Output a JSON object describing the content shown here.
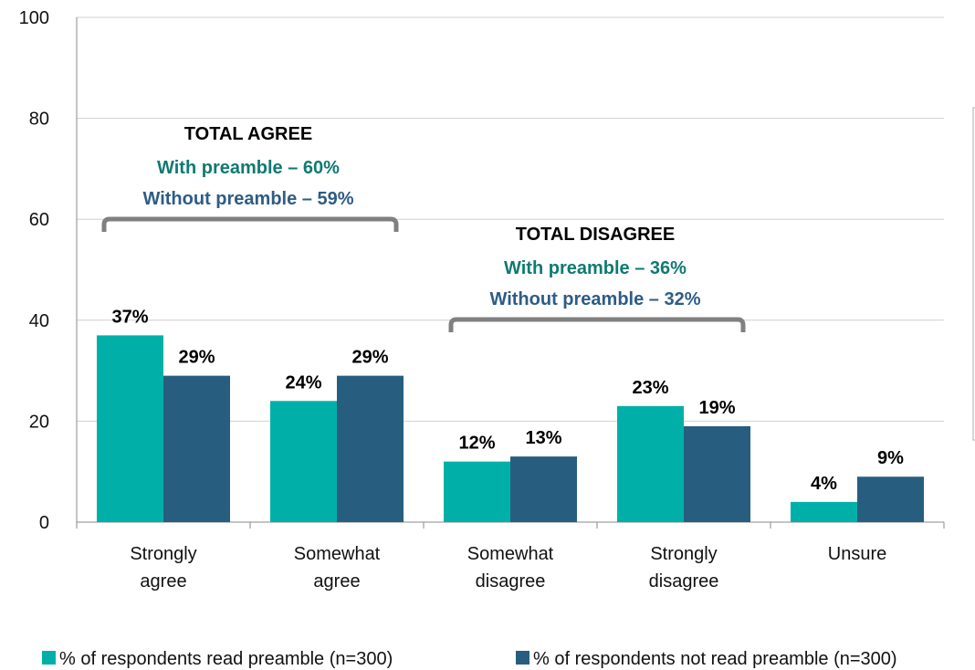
{
  "chart_data": {
    "type": "bar",
    "categories": [
      [
        "Strongly",
        "agree"
      ],
      [
        "Somewhat",
        "agree"
      ],
      [
        "Somewhat",
        "disagree"
      ],
      [
        "Strongly",
        "disagree"
      ],
      [
        "Unsure"
      ]
    ],
    "series": [
      {
        "name": "% of respondents read preamble (n=300)",
        "color": "#00B0A8",
        "values": [
          37,
          24,
          12,
          23,
          4
        ],
        "labels": [
          "37%",
          "24%",
          "12%",
          "23%",
          "4%"
        ]
      },
      {
        "name": "% of respondents not read preamble (n=300)",
        "color": "#275E80",
        "values": [
          29,
          29,
          13,
          19,
          9
        ],
        "labels": [
          "29%",
          "29%",
          "13%",
          "19%",
          "9%"
        ]
      }
    ],
    "ylim": [
      0,
      100
    ],
    "yticks": [
      0,
      20,
      40,
      60,
      80,
      100
    ],
    "grid": true,
    "legend_position": "bottom",
    "annotations": [
      {
        "title": "TOTAL AGREE",
        "with_text": "With preamble – 60%",
        "without_text": "Without preamble – 59%",
        "spans": [
          0,
          1
        ]
      },
      {
        "title": "TOTAL DISAGREE",
        "with_text": "With preamble – 36%",
        "without_text": "Without preamble – 32%",
        "spans": [
          2,
          3
        ]
      }
    ],
    "colors": {
      "with_text": "#0F7A72",
      "without_text": "#2E5C85",
      "bracket": "#808080",
      "grid": "#D0D0D0",
      "axis": "#888888"
    }
  }
}
